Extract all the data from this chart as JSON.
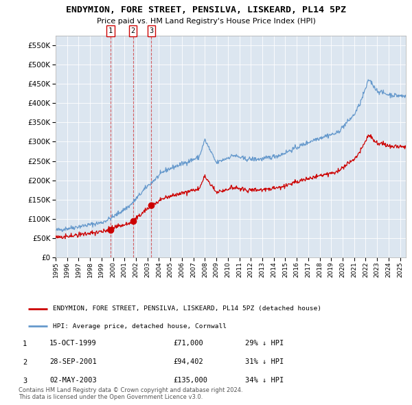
{
  "title": "ENDYMION, FORE STREET, PENSILVA, LISKEARD, PL14 5PZ",
  "subtitle": "Price paid vs. HM Land Registry's House Price Index (HPI)",
  "background_color": "#dce6f0",
  "plot_bg_color": "#dce6f0",
  "ylim": [
    0,
    575000
  ],
  "yticks": [
    0,
    50000,
    100000,
    150000,
    200000,
    250000,
    300000,
    350000,
    400000,
    450000,
    500000,
    550000
  ],
  "sale_dates_num": [
    1999.79,
    2001.74,
    2003.33
  ],
  "sale_prices": [
    71000,
    94402,
    135000
  ],
  "sale_labels": [
    "1",
    "2",
    "3"
  ],
  "sale_color": "#cc0000",
  "hpi_color": "#6699cc",
  "legend_sale_label": "ENDYMION, FORE STREET, PENSILVA, LISKEARD, PL14 5PZ (detached house)",
  "legend_hpi_label": "HPI: Average price, detached house, Cornwall",
  "table_rows": [
    [
      "1",
      "15-OCT-1999",
      "£71,000",
      "29% ↓ HPI"
    ],
    [
      "2",
      "28-SEP-2001",
      "£94,402",
      "31% ↓ HPI"
    ],
    [
      "3",
      "02-MAY-2003",
      "£135,000",
      "34% ↓ HPI"
    ]
  ],
  "footer_text": "Contains HM Land Registry data © Crown copyright and database right 2024.\nThis data is licensed under the Open Government Licence v3.0.",
  "xmin": 1995.0,
  "xmax": 2025.5
}
